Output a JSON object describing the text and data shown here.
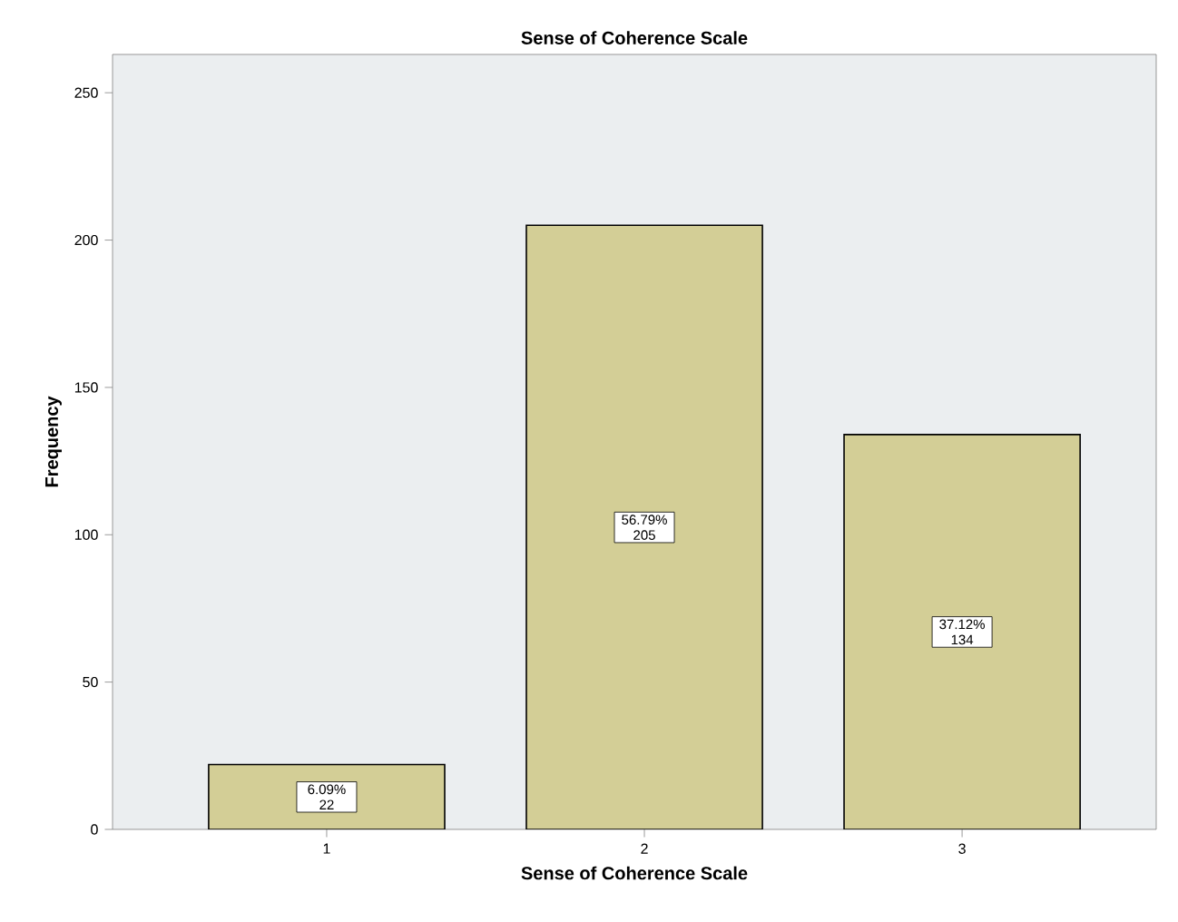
{
  "chart_data": {
    "type": "bar",
    "title": "Sense of Coherence Scale",
    "xlabel": "Sense of Coherence Scale",
    "ylabel": "Frequency",
    "categories": [
      "1",
      "2",
      "3"
    ],
    "values": [
      22,
      205,
      134
    ],
    "color": "#d3ce96",
    "value_labels": [
      "6.09% 22",
      "56.79% 205",
      "37.12% 134"
    ],
    "ylim": [
      0,
      263
    ],
    "yticks": [
      0,
      50,
      100,
      150,
      200,
      250
    ],
    "grid": false
  }
}
